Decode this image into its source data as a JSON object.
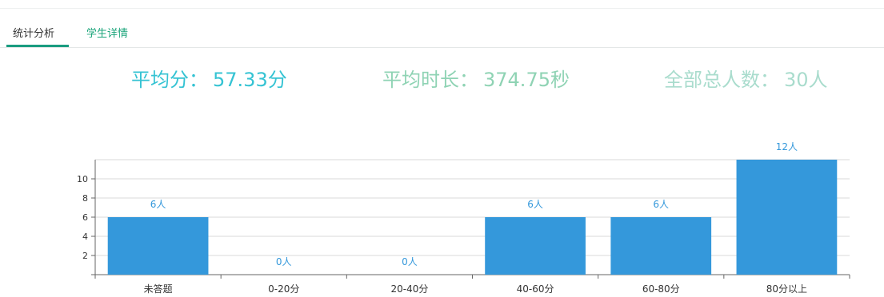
{
  "tabs": [
    {
      "label": "统计分析",
      "active": true
    },
    {
      "label": "学生详情",
      "active": false
    }
  ],
  "stats": {
    "avg_score": {
      "label": "平均分：",
      "value": "57.33分",
      "color": "#35c3d3"
    },
    "avg_duration": {
      "label": "平均时长：",
      "value": "374.75秒",
      "color": "#8fd3b4"
    },
    "total_people": {
      "label": "全部总人数：",
      "value": "30人",
      "color": "#a9dccd"
    }
  },
  "colors": {
    "bar": "#3498db",
    "bar_label": "#3498db",
    "axis": "#666666",
    "grid": "#d9d9d9"
  },
  "chart_data": {
    "type": "bar",
    "categories": [
      "未答题",
      "0-20分",
      "20-40分",
      "40-60分",
      "60-80分",
      "80分以上"
    ],
    "values": [
      6,
      0,
      0,
      6,
      6,
      12
    ],
    "data_labels": [
      "6人",
      "0人",
      "0人",
      "6人",
      "6人",
      "12人"
    ],
    "yticks": [
      2,
      4,
      6,
      8,
      10
    ],
    "ylim": [
      0,
      12
    ],
    "grid": true,
    "legend": "none",
    "title": "",
    "xlabel": "",
    "ylabel": ""
  }
}
